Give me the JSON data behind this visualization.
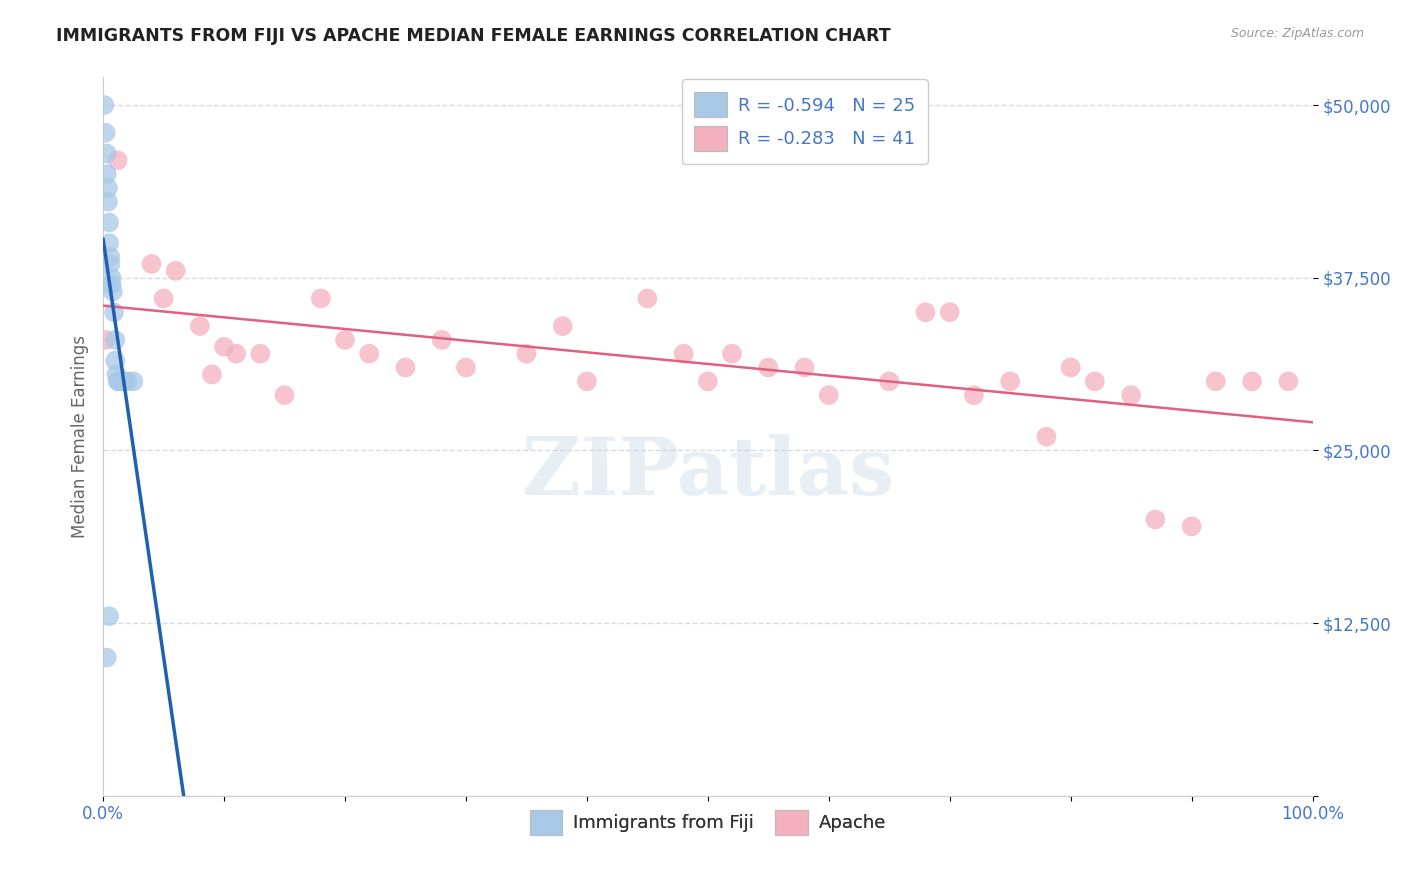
{
  "title": "IMMIGRANTS FROM FIJI VS APACHE MEDIAN FEMALE EARNINGS CORRELATION CHART",
  "source": "Source: ZipAtlas.com",
  "ylabel": "Median Female Earnings",
  "watermark": "ZIPatlas",
  "xlim": [
    0,
    1.0
  ],
  "ylim": [
    0,
    52000
  ],
  "xticks": [
    0.0,
    0.1,
    0.2,
    0.3,
    0.4,
    0.5,
    0.6,
    0.7,
    0.8,
    0.9,
    1.0
  ],
  "xtick_labels": [
    "0.0%",
    "",
    "",
    "",
    "",
    "",
    "",
    "",
    "",
    "",
    "100.0%"
  ],
  "yticks": [
    0,
    12500,
    25000,
    37500,
    50000
  ],
  "ytick_labels": [
    "",
    "$12,500",
    "$25,000",
    "$37,500",
    "$50,000"
  ],
  "legend_label1": "Immigrants from Fiji",
  "legend_label2": "Apache",
  "R1": -0.594,
  "N1": 25,
  "R2": -0.283,
  "N2": 41,
  "color1": "#a8c8e8",
  "color2": "#f4afc0",
  "line_color1": "#2060b0",
  "line_color2": "#e06080",
  "fiji_x": [
    0.001,
    0.002,
    0.003,
    0.003,
    0.004,
    0.004,
    0.005,
    0.005,
    0.006,
    0.006,
    0.007,
    0.007,
    0.008,
    0.009,
    0.01,
    0.01,
    0.011,
    0.012,
    0.013,
    0.015,
    0.018,
    0.02,
    0.025,
    0.005,
    0.003
  ],
  "fiji_y": [
    50000,
    48000,
    46500,
    45000,
    44000,
    43000,
    41500,
    40000,
    39000,
    38500,
    37500,
    37000,
    36500,
    35000,
    33000,
    31500,
    30500,
    30000,
    30000,
    30000,
    30000,
    30000,
    30000,
    13000,
    10000
  ],
  "apache_x": [
    0.002,
    0.012,
    0.04,
    0.05,
    0.06,
    0.08,
    0.09,
    0.1,
    0.11,
    0.13,
    0.15,
    0.18,
    0.2,
    0.22,
    0.25,
    0.28,
    0.3,
    0.35,
    0.38,
    0.4,
    0.45,
    0.48,
    0.5,
    0.52,
    0.55,
    0.58,
    0.6,
    0.65,
    0.68,
    0.7,
    0.72,
    0.75,
    0.78,
    0.8,
    0.82,
    0.85,
    0.87,
    0.9,
    0.92,
    0.95,
    0.98
  ],
  "apache_y": [
    33000,
    46000,
    38500,
    36000,
    38000,
    34000,
    30500,
    32500,
    32000,
    32000,
    29000,
    36000,
    33000,
    32000,
    31000,
    33000,
    31000,
    32000,
    34000,
    30000,
    36000,
    32000,
    30000,
    32000,
    31000,
    31000,
    29000,
    30000,
    35000,
    35000,
    29000,
    30000,
    26000,
    31000,
    30000,
    29000,
    20000,
    19500,
    30000,
    30000,
    30000
  ],
  "grid_color": "#d4dce8",
  "bg_color": "#ffffff",
  "title_color": "#222222",
  "axis_tick_color": "#4477cc",
  "ylabel_color": "#666666"
}
